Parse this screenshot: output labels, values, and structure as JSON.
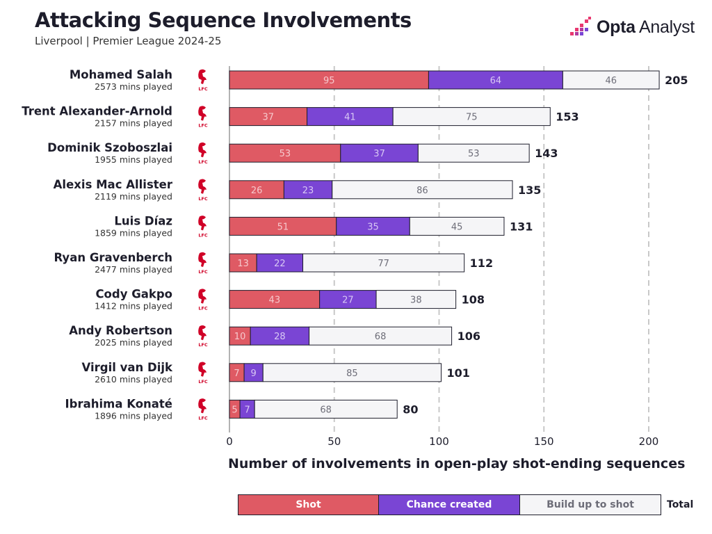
{
  "header": {
    "title": "Attacking Sequence Involvements",
    "subtitle": "Liverpool | Premier League 2024-25"
  },
  "brand": {
    "name_bold": "Opta",
    "name_regular": "Analyst"
  },
  "club_badge": {
    "icon": "liverpool-crest-icon",
    "text": "LFC",
    "color": "#d00027"
  },
  "colors": {
    "shot": "#df5a64",
    "chance": "#7a45d4",
    "buildup": "#f5f5f7",
    "border": "#1d1d2b",
    "grid": "#c8c8c8"
  },
  "chart_data": {
    "type": "bar",
    "orientation": "horizontal",
    "stacked": true,
    "title": "Attacking Sequence Involvements",
    "subtitle": "Liverpool | Premier League 2024-25",
    "xlabel": "Number of involvements in open-play shot-ending sequences",
    "xlim": [
      0,
      200
    ],
    "xticks": [
      0,
      50,
      100,
      150,
      200
    ],
    "grid": "vertical dashed",
    "legend_position": "bottom",
    "categories": [
      "Mohamed Salah",
      "Trent Alexander-Arnold",
      "Dominik Szoboszlai",
      "Alexis Mac Allister",
      "Luis Díaz",
      "Ryan Gravenberch",
      "Cody Gakpo",
      "Andy Robertson",
      "Virgil van Dijk",
      "Ibrahima Konaté"
    ],
    "minutes_played": [
      "2573 mins played",
      "2157 mins played",
      "1955 mins played",
      "2119 mins played",
      "1859 mins played",
      "2477 mins played",
      "1412 mins played",
      "2025 mins played",
      "2610 mins played",
      "1896 mins played"
    ],
    "series": [
      {
        "name": "Shot",
        "values": [
          95,
          37,
          53,
          26,
          51,
          13,
          43,
          10,
          7,
          5
        ]
      },
      {
        "name": "Chance created",
        "values": [
          64,
          41,
          37,
          23,
          35,
          22,
          27,
          28,
          9,
          7
        ]
      },
      {
        "name": "Build up to shot",
        "values": [
          46,
          75,
          53,
          86,
          45,
          77,
          38,
          68,
          85,
          68
        ]
      }
    ],
    "totals": [
      205,
      153,
      143,
      135,
      131,
      112,
      108,
      106,
      101,
      80
    ],
    "totals_label": "Total"
  }
}
